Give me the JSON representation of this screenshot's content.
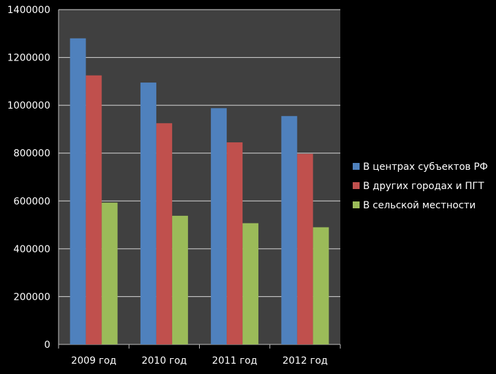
{
  "chart_data": {
    "type": "bar",
    "title": "",
    "xlabel": "",
    "ylabel": "",
    "categories": [
      "2009 год",
      "2010 год",
      "2011 год",
      "2012 год"
    ],
    "series": [
      {
        "name": "В центрах субъектов РФ",
        "color": "#4f81bd",
        "values": [
          1280000,
          1095000,
          988000,
          955000
        ]
      },
      {
        "name": "В других городах и ПГТ",
        "color": "#c0504d",
        "values": [
          1125000,
          925000,
          845000,
          797000
        ]
      },
      {
        "name": "В сельской местности",
        "color": "#9bbb59",
        "values": [
          593000,
          538000,
          507000,
          490000
        ]
      }
    ],
    "ylim": [
      0,
      1400000
    ],
    "yticks": [
      0,
      200000,
      400000,
      600000,
      800000,
      1000000,
      1200000,
      1400000
    ],
    "grid": true,
    "legend_position": "right",
    "plot_background": "#404040",
    "gridline_color": "#d9d9d9"
  }
}
